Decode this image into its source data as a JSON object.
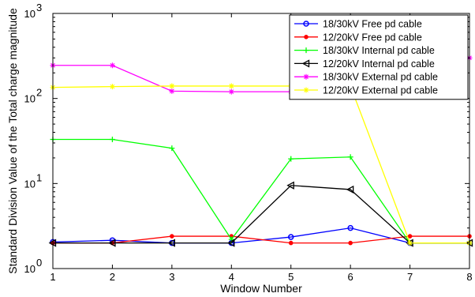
{
  "chart_data": {
    "type": "line",
    "title": "",
    "xlabel": "Window Number",
    "ylabel": "Standard Division Value of the Total charge magnitude",
    "x": [
      1,
      2,
      3,
      4,
      5,
      6,
      7,
      8
    ],
    "xlim": [
      1,
      8
    ],
    "ylim": [
      1,
      1000
    ],
    "yscale": "log",
    "x_ticks": [
      "1",
      "2",
      "3",
      "4",
      "5",
      "6",
      "7",
      "8"
    ],
    "y_ticks": [
      {
        "value": 1,
        "base": "10",
        "exp": "0"
      },
      {
        "value": 10,
        "base": "10",
        "exp": "1"
      },
      {
        "value": 100,
        "base": "10",
        "exp": "2"
      },
      {
        "value": 1000,
        "base": "10",
        "exp": "3"
      }
    ],
    "grid": false,
    "legend_position": "top-right",
    "series": [
      {
        "name": "18/30kV Free pd cable",
        "color": "#0000ff",
        "marker": "circle",
        "values": [
          2.05,
          2.15,
          2.0,
          2.0,
          2.35,
          3.0,
          2.0,
          null
        ]
      },
      {
        "name": "12/20kV Free pd cable",
        "color": "#ff0000",
        "marker": "dot",
        "values": [
          2.0,
          2.0,
          2.4,
          2.4,
          2.0,
          2.0,
          2.4,
          2.4
        ]
      },
      {
        "name": "18/30kV Internal pd cable",
        "color": "#00ff00",
        "marker": "plus",
        "values": [
          33,
          33,
          26,
          2.2,
          19.5,
          20.5,
          2.0,
          2.0
        ]
      },
      {
        "name": "12/20kV Internal pd cable",
        "color": "#000000",
        "marker": "triangle-left",
        "values": [
          2.0,
          2.0,
          2.0,
          2.0,
          9.5,
          8.5,
          2.0,
          2.0
        ]
      },
      {
        "name": "18/30kV External pd cable",
        "color": "#ff00ff",
        "marker": "star",
        "values": [
          245,
          245,
          122,
          120,
          120,
          120,
          null,
          300
        ]
      },
      {
        "name": "12/20kV External pd cable",
        "color": "#ffff00",
        "marker": "star",
        "values": [
          135,
          138,
          140,
          140,
          140,
          140,
          2.0,
          2.0
        ]
      }
    ]
  }
}
